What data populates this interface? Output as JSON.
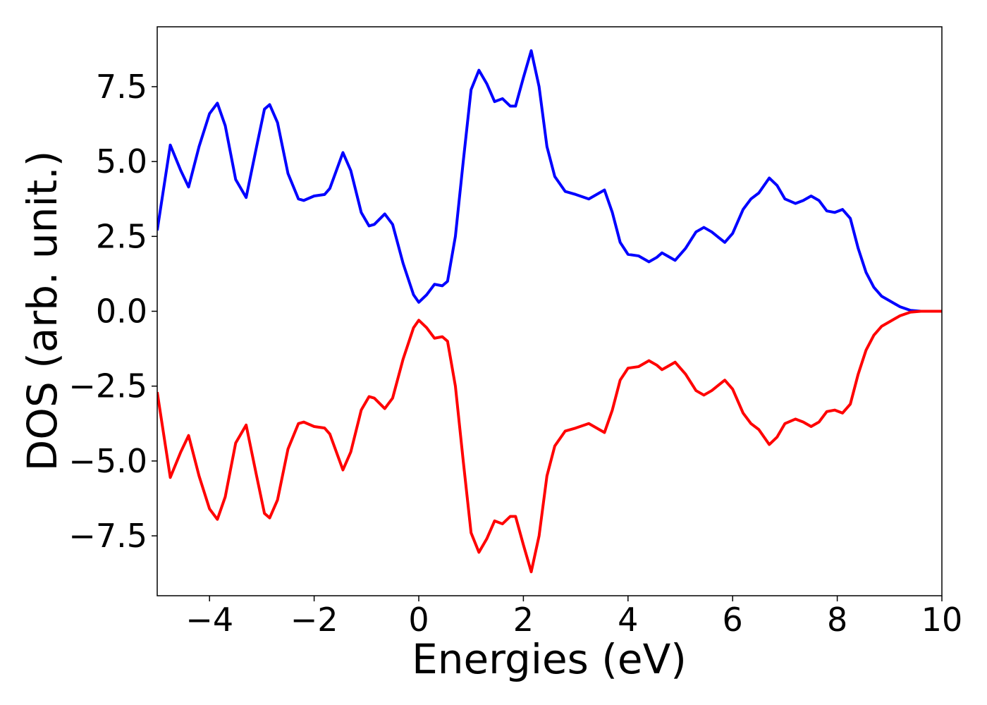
{
  "chart_data": {
    "type": "line",
    "xlabel": "Energies (eV)",
    "ylabel": "DOS (arb. unit.)",
    "x": [
      -5,
      -4.75,
      -4.55,
      -4.4,
      -4.2,
      -4.0,
      -3.85,
      -3.7,
      -3.5,
      -3.3,
      -3.1,
      -2.95,
      -2.85,
      -2.7,
      -2.5,
      -2.3,
      -2.2,
      -2.0,
      -1.8,
      -1.7,
      -1.45,
      -1.3,
      -1.1,
      -0.95,
      -0.85,
      -0.65,
      -0.5,
      -0.3,
      -0.1,
      0.0,
      0.15,
      0.3,
      0.45,
      0.55,
      0.7,
      0.85,
      1.0,
      1.15,
      1.3,
      1.45,
      1.6,
      1.75,
      1.85,
      2.0,
      2.15,
      2.3,
      2.45,
      2.6,
      2.8,
      3.0,
      3.25,
      3.45,
      3.55,
      3.7,
      3.85,
      4.0,
      4.2,
      4.4,
      4.55,
      4.65,
      4.75,
      4.9,
      5.1,
      5.3,
      5.45,
      5.6,
      5.85,
      6.0,
      6.2,
      6.35,
      6.5,
      6.7,
      6.85,
      7.0,
      7.2,
      7.35,
      7.5,
      7.65,
      7.8,
      7.95,
      8.1,
      8.25,
      8.4,
      8.55,
      8.7,
      8.85,
      9.0,
      9.2,
      9.4,
      9.6,
      10
    ],
    "series": [
      {
        "color": "#0000ff",
        "values": [
          2.7,
          5.55,
          4.7,
          4.15,
          5.5,
          6.6,
          6.95,
          6.2,
          4.4,
          3.8,
          5.5,
          6.75,
          6.9,
          6.3,
          4.6,
          3.75,
          3.7,
          3.85,
          3.9,
          4.1,
          5.3,
          4.7,
          3.3,
          2.85,
          2.9,
          3.25,
          2.9,
          1.6,
          0.55,
          0.3,
          0.55,
          0.9,
          0.85,
          1.0,
          2.5,
          5.0,
          7.4,
          8.05,
          7.6,
          7.0,
          7.1,
          6.85,
          6.85,
          7.8,
          8.7,
          7.5,
          5.5,
          4.5,
          4.0,
          3.9,
          3.75,
          3.95,
          4.05,
          3.3,
          2.3,
          1.9,
          1.85,
          1.65,
          1.8,
          1.95,
          1.85,
          1.7,
          2.1,
          2.65,
          2.8,
          2.65,
          2.3,
          2.6,
          3.4,
          3.75,
          3.95,
          4.45,
          4.2,
          3.75,
          3.6,
          3.7,
          3.85,
          3.7,
          3.35,
          3.3,
          3.4,
          3.1,
          2.1,
          1.3,
          0.8,
          0.5,
          0.35,
          0.15,
          0.03,
          0,
          0
        ]
      },
      {
        "color": "#ff0000",
        "values": [
          -2.7,
          -5.55,
          -4.7,
          -4.15,
          -5.5,
          -6.6,
          -6.95,
          -6.2,
          -4.4,
          -3.8,
          -5.5,
          -6.75,
          -6.9,
          -6.3,
          -4.6,
          -3.75,
          -3.7,
          -3.85,
          -3.9,
          -4.1,
          -5.3,
          -4.7,
          -3.3,
          -2.85,
          -2.9,
          -3.25,
          -2.9,
          -1.6,
          -0.55,
          -0.3,
          -0.55,
          -0.9,
          -0.85,
          -1.0,
          -2.5,
          -5.0,
          -7.4,
          -8.05,
          -7.6,
          -7.0,
          -7.1,
          -6.85,
          -6.85,
          -7.8,
          -8.7,
          -7.5,
          -5.5,
          -4.5,
          -4.0,
          -3.9,
          -3.75,
          -3.95,
          -4.05,
          -3.3,
          -2.3,
          -1.9,
          -1.85,
          -1.65,
          -1.8,
          -1.95,
          -1.85,
          -1.7,
          -2.1,
          -2.65,
          -2.8,
          -2.65,
          -2.3,
          -2.6,
          -3.4,
          -3.75,
          -3.95,
          -4.45,
          -4.2,
          -3.75,
          -3.6,
          -3.7,
          -3.85,
          -3.7,
          -3.35,
          -3.3,
          -3.4,
          -3.1,
          -2.1,
          -1.3,
          -0.8,
          -0.5,
          -0.35,
          -0.15,
          -0.03,
          0,
          0
        ]
      }
    ],
    "xlim": [
      -5,
      10
    ],
    "ylim": [
      -9.5,
      9.5
    ],
    "xticks": [
      {
        "value": -4,
        "label": "−4"
      },
      {
        "value": -2,
        "label": "−2"
      },
      0,
      2,
      4,
      6,
      8,
      10
    ],
    "yticks": [
      {
        "value": -7.5,
        "label": "−7.5"
      },
      {
        "value": -5,
        "label": "−5.0"
      },
      {
        "value": -2.5,
        "label": "−2.5"
      },
      {
        "value": 0,
        "label": "0.0"
      },
      {
        "value": 2.5,
        "label": "2.5"
      },
      {
        "value": 5,
        "label": "5.0"
      },
      {
        "value": 7.5,
        "label": "7.5"
      }
    ]
  }
}
